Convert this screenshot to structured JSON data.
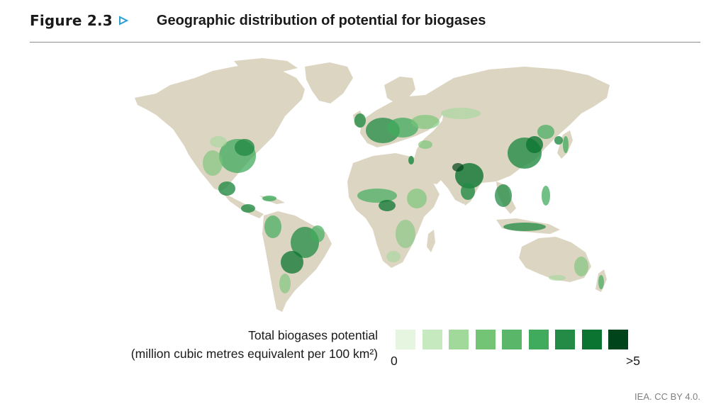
{
  "figure": {
    "label": "Figure 2.3",
    "title": "Geographic distribution of potential for biogases"
  },
  "map": {
    "land_color": "#dcd5c1",
    "ocean_color": "#ffffff",
    "regions_high_potential": [
      "Europe",
      "India",
      "East China",
      "Eastern United States",
      "Central America",
      "Brazil",
      "Southeast Asia",
      "West Africa"
    ]
  },
  "legend": {
    "title_line1": "Total biogases potential",
    "title_line2": "(million cubic metres equivalent per 100 km²)",
    "min_label": "0",
    "max_label": ">5",
    "colors": [
      "#e5f5e0",
      "#c7e9c0",
      "#a1d99b",
      "#74c476",
      "#5ab769",
      "#41ab5d",
      "#238b45",
      "#0c7431",
      "#00441b"
    ]
  },
  "credit": "IEA. CC BY 4.0."
}
